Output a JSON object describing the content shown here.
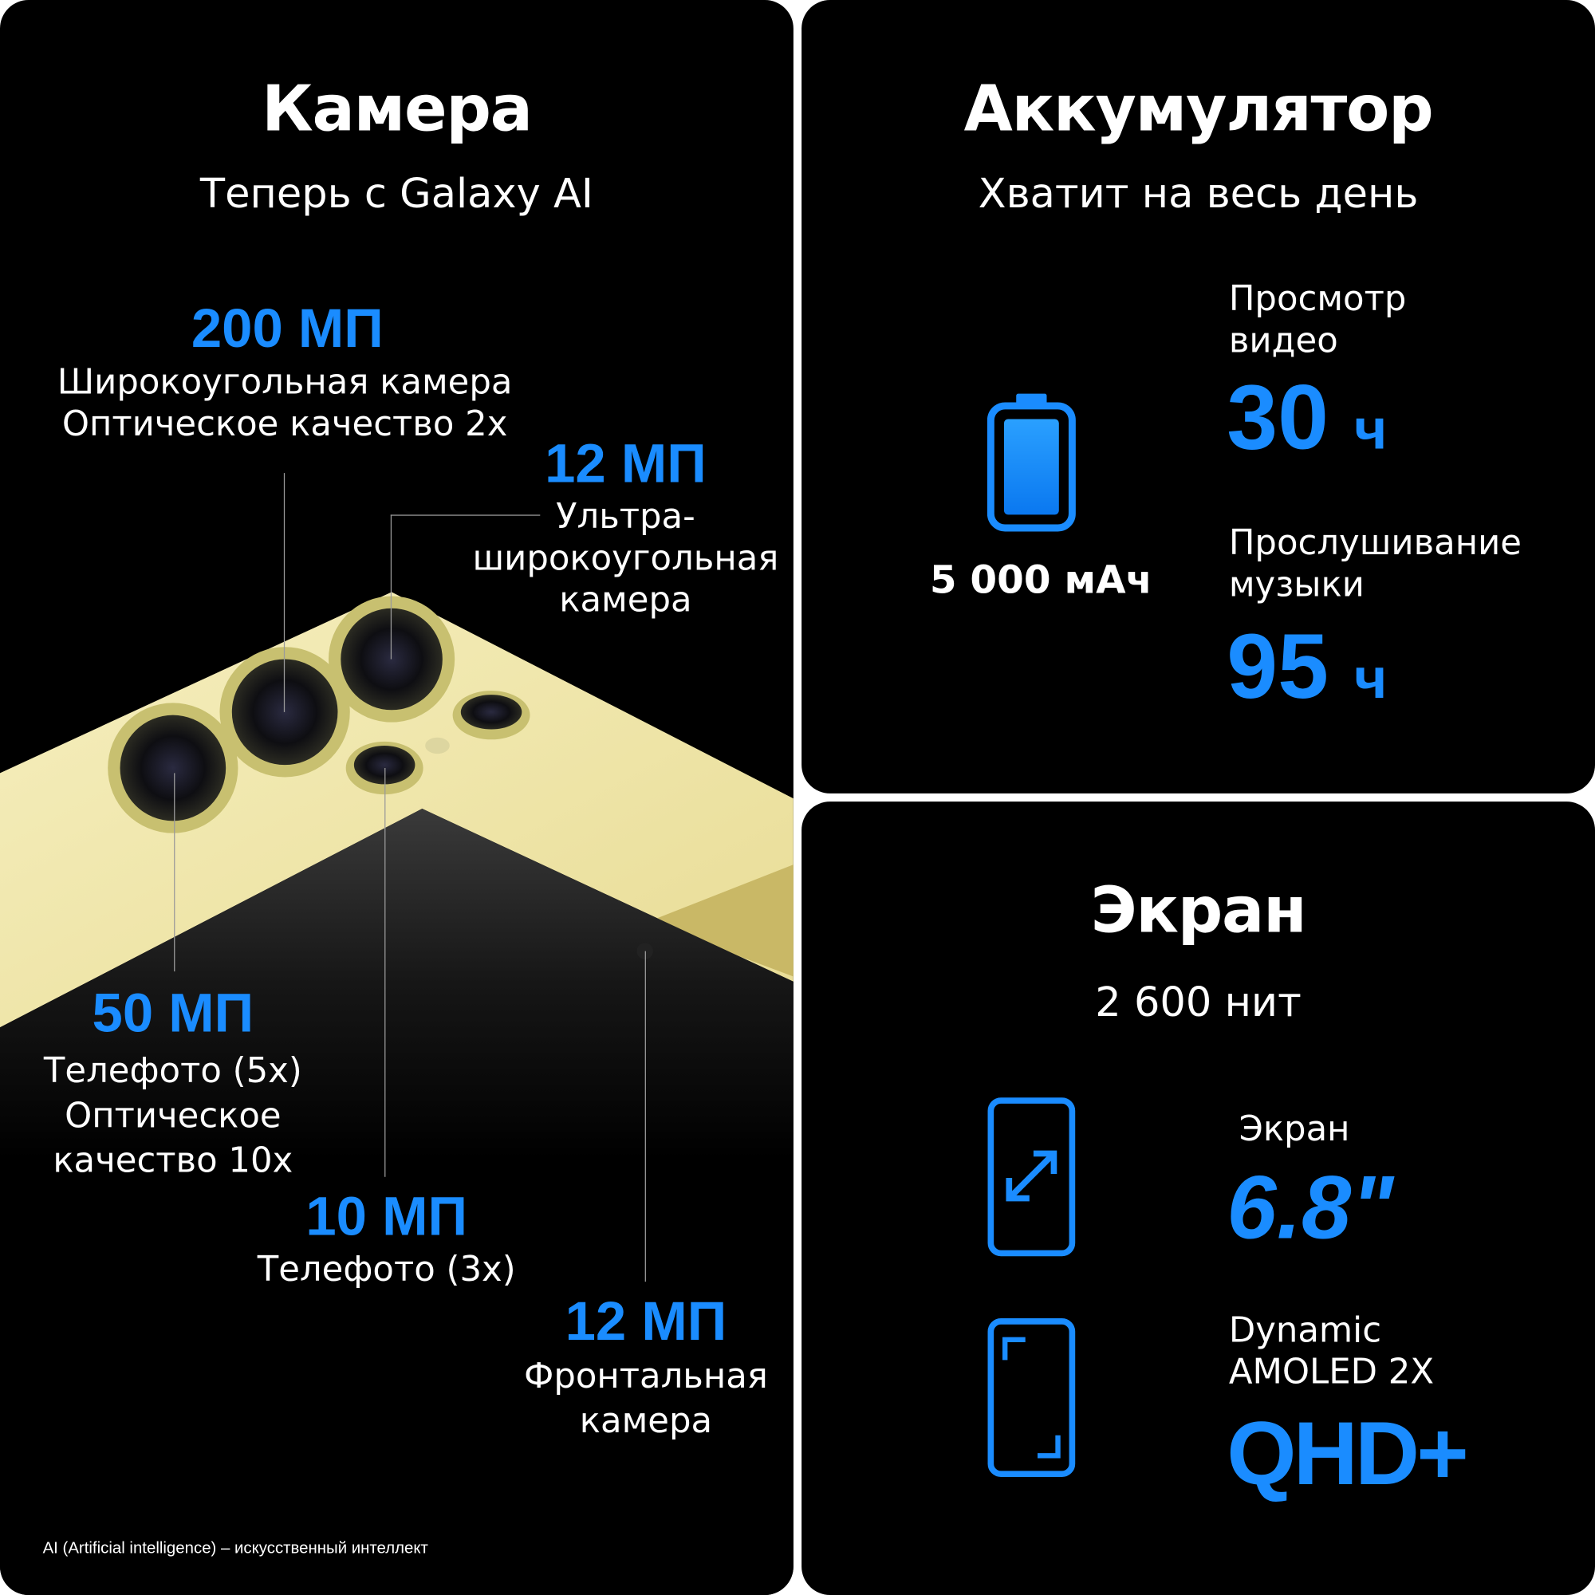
{
  "camera": {
    "title": "Камера",
    "subtitle": "Теперь с Galaxy AI",
    "specs": [
      {
        "value": "200 МП",
        "lines": [
          "Широкоугольная камера",
          "Оптическое качество 2x"
        ]
      },
      {
        "value": "12 МП",
        "lines": [
          "Ультра-",
          "широкоугольная",
          "камера"
        ]
      },
      {
        "value": "50 МП",
        "lines": [
          "Телефото (5x)",
          "Оптическое",
          "качество 10x"
        ]
      },
      {
        "value": "10 МП",
        "lines": [
          "Телефото (3x)"
        ]
      },
      {
        "value": "12 МП",
        "lines": [
          "Фронтальная",
          "камера"
        ]
      }
    ],
    "footnote": "AI (Artificial intelligence) – искусственный интеллект",
    "phone_color": "#f3eab0"
  },
  "battery": {
    "title": "Аккумулятор",
    "subtitle": "Хватит на весь день",
    "capacity": "5 000 мАч",
    "icon": "battery-full-icon",
    "video": {
      "label1": "Просмотр",
      "label2": "видео",
      "value": "30",
      "unit": "ч"
    },
    "music": {
      "label1": "Прослушивание",
      "label2": "музыки",
      "value": "95",
      "unit": "ч"
    }
  },
  "display": {
    "title": "Экран",
    "subtitle": "2 600 нит",
    "size": {
      "label": "Экран",
      "value": "6.8\"",
      "icon": "screen-size-icon"
    },
    "type": {
      "label1": "Dynamic",
      "label2": "AMOLED 2X",
      "value": "QHD+",
      "icon": "screen-resolution-icon"
    }
  },
  "colors": {
    "accent": "#1a8cff",
    "background": "#000000",
    "text": "#ffffff"
  }
}
